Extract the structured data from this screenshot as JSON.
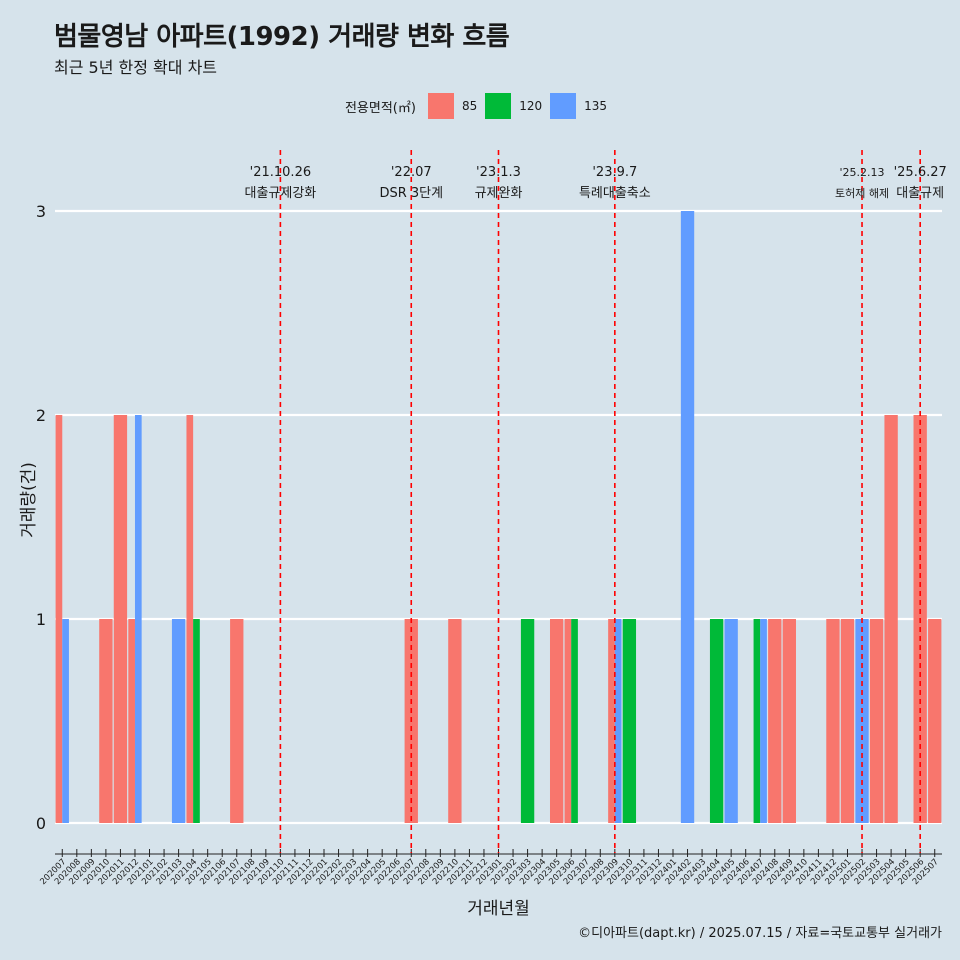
{
  "title": "범물영남 아파트(1992) 거래량 변화 흐름",
  "subtitle": "최근 5년 한정 확대 차트",
  "caption": "©디아파트(dapt.kr) / 2025.07.15 / 자료=국토교통부 실거래가",
  "colors": {
    "background": "#d6e3eb",
    "85": "#F8766D",
    "120": "#00BA38",
    "135": "#619CFF",
    "vline": "#ff0000"
  },
  "chart_data": {
    "type": "bar",
    "xlabel": "거래년월",
    "ylabel": "거래량(건)",
    "ylim": [
      0,
      3
    ],
    "yticks": [
      0,
      1,
      2,
      3
    ],
    "grid": "horizontal",
    "legend_title": "전용면적(㎡)",
    "legend_position": "top",
    "categories": [
      "202007",
      "202008",
      "202009",
      "202010",
      "202011",
      "202012",
      "202101",
      "202102",
      "202103",
      "202104",
      "202105",
      "202106",
      "202107",
      "202108",
      "202109",
      "202110",
      "202111",
      "202112",
      "202201",
      "202202",
      "202203",
      "202204",
      "202205",
      "202206",
      "202207",
      "202208",
      "202209",
      "202210",
      "202211",
      "202212",
      "202301",
      "202302",
      "202303",
      "202304",
      "202305",
      "202306",
      "202307",
      "202308",
      "202309",
      "202310",
      "202311",
      "202312",
      "202401",
      "202402",
      "202403",
      "202404",
      "202405",
      "202406",
      "202407",
      "202408",
      "202409",
      "202410",
      "202411",
      "202412",
      "202501",
      "202502",
      "202503",
      "202504",
      "202505",
      "202506",
      "202507"
    ],
    "series": [
      {
        "name": "85",
        "values": [
          2,
          0,
          0,
          1,
          2,
          1,
          0,
          0,
          0,
          2,
          0,
          0,
          1,
          0,
          0,
          0,
          0,
          0,
          0,
          0,
          0,
          0,
          0,
          0,
          1,
          0,
          0,
          1,
          0,
          0,
          0,
          0,
          0,
          0,
          1,
          1,
          0,
          0,
          1,
          0,
          0,
          0,
          0,
          0,
          0,
          0,
          0,
          0,
          0,
          1,
          1,
          0,
          0,
          1,
          1,
          0,
          1,
          2,
          0,
          2,
          1
        ]
      },
      {
        "name": "120",
        "values": [
          0,
          0,
          0,
          0,
          0,
          0,
          0,
          0,
          0,
          1,
          0,
          0,
          0,
          0,
          0,
          0,
          0,
          0,
          0,
          0,
          0,
          0,
          0,
          0,
          0,
          0,
          0,
          0,
          0,
          0,
          0,
          0,
          1,
          0,
          0,
          1,
          0,
          0,
          0,
          1,
          0,
          0,
          0,
          0,
          0,
          1,
          0,
          0,
          1,
          0,
          0,
          0,
          0,
          0,
          0,
          0,
          0,
          0,
          0,
          0,
          0
        ]
      },
      {
        "name": "135",
        "values": [
          1,
          0,
          0,
          0,
          0,
          2,
          0,
          0,
          1,
          0,
          0,
          0,
          0,
          0,
          0,
          0,
          0,
          0,
          0,
          0,
          0,
          0,
          0,
          0,
          0,
          0,
          0,
          0,
          0,
          0,
          0,
          0,
          0,
          0,
          0,
          0,
          0,
          0,
          1,
          0,
          0,
          0,
          0,
          3,
          0,
          0,
          1,
          0,
          1,
          0,
          0,
          0,
          0,
          0,
          0,
          1,
          0,
          0,
          0,
          0,
          0
        ]
      }
    ],
    "annotations": [
      {
        "x": "202110",
        "label_date": "'21.10.26",
        "label_text": "대출규제강화"
      },
      {
        "x": "202207",
        "label_date": "'22.07",
        "label_text": "DSR 3단계"
      },
      {
        "x": "202301",
        "label_date": "'23.1.3",
        "label_text": "규제완화"
      },
      {
        "x": "202309",
        "label_date": "'23.9.7",
        "label_text": "특례대출축소"
      },
      {
        "x": "202502",
        "label_date": "'25.2.13",
        "label_text": "토허제 해제"
      },
      {
        "x": "202506",
        "label_date": "'25.6.27",
        "label_text": "대출규제"
      }
    ]
  }
}
